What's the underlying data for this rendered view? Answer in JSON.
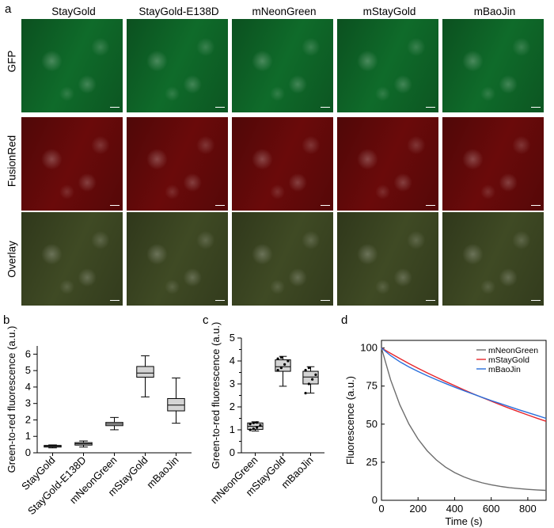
{
  "panel_labels": {
    "a": "a",
    "b": "b",
    "c": "c",
    "d": "d"
  },
  "panel_a": {
    "columns": [
      "StayGold",
      "StayGold-E138D",
      "mNeonGreen",
      "mStayGold",
      "mBaoJin"
    ],
    "rows": [
      {
        "label": "GFP",
        "color": "#0f6b2a"
      },
      {
        "label": "FusionRed",
        "color": "#6a0a0a"
      },
      {
        "label": "Overlay",
        "color": "#3f4a24"
      }
    ]
  },
  "chart_data": [
    {
      "panel": "b",
      "type": "box",
      "ylabel": "Green-to-red fluorescence (a.u.)",
      "categories": [
        "StayGold",
        "StayGold-E138D",
        "mNeonGreen",
        "mStayGold",
        "mBaoJin"
      ],
      "ylim": [
        0,
        6.5
      ],
      "yticks": [
        0,
        1,
        2,
        3,
        4,
        5,
        6
      ],
      "boxes": [
        {
          "min": 0.3,
          "q1": 0.35,
          "median": 0.4,
          "q3": 0.45,
          "max": 0.48
        },
        {
          "min": 0.35,
          "q1": 0.47,
          "median": 0.55,
          "q3": 0.62,
          "max": 0.72
        },
        {
          "min": 1.4,
          "q1": 1.65,
          "median": 1.75,
          "q3": 1.85,
          "max": 2.15
        },
        {
          "min": 3.4,
          "q1": 4.6,
          "median": 4.85,
          "q3": 5.25,
          "max": 5.9
        },
        {
          "min": 1.8,
          "q1": 2.55,
          "median": 2.9,
          "q3": 3.3,
          "max": 4.55
        }
      ]
    },
    {
      "panel": "c",
      "type": "box",
      "ylabel": "Green-to-red fluorescence (a.u.)",
      "categories": [
        "mNeonGreen",
        "mStayGold",
        "mBaoJin"
      ],
      "ylim": [
        0,
        5
      ],
      "yticks": [
        0,
        0.5,
        1,
        1.5,
        2,
        2.5,
        3,
        3.5,
        4,
        4.5,
        5
      ],
      "ytick_labels": [
        "0",
        "",
        "1",
        "",
        "2",
        "",
        "3",
        "",
        "4",
        "",
        "5"
      ],
      "boxes": [
        {
          "min": 0.95,
          "q1": 1.02,
          "median": 1.15,
          "q3": 1.3,
          "max": 1.35,
          "points": [
            1.0,
            1.05,
            1.1,
            1.2,
            1.25,
            1.3,
            1.32
          ]
        },
        {
          "min": 2.9,
          "q1": 3.55,
          "median": 3.75,
          "q3": 4.05,
          "max": 4.2,
          "points": [
            3.6,
            3.7,
            3.85,
            4.0,
            4.1,
            4.15
          ]
        },
        {
          "min": 2.6,
          "q1": 3.0,
          "median": 3.3,
          "q3": 3.55,
          "max": 3.75,
          "points": [
            2.6,
            3.0,
            3.2,
            3.4,
            3.6,
            3.7
          ]
        }
      ]
    },
    {
      "panel": "d",
      "type": "line",
      "xlabel": "Time (s)",
      "ylabel": "Fluorescence (a.u.)",
      "xlim": [
        0,
        900
      ],
      "ylim": [
        0,
        105
      ],
      "xticks": [
        0,
        200,
        400,
        600,
        800
      ],
      "yticks": [
        0,
        25,
        50,
        75,
        100
      ],
      "legend": "top-right",
      "x": [
        0,
        50,
        100,
        150,
        200,
        250,
        300,
        350,
        400,
        450,
        500,
        550,
        600,
        650,
        700,
        750,
        800,
        850,
        900
      ],
      "series": [
        {
          "name": "mNeonGreen",
          "color": "#6d6d6d",
          "values": [
            100,
            79.1,
            62.8,
            50.1,
            40.2,
            32.5,
            26.5,
            21.8,
            18.2,
            15.4,
            13.2,
            11.5,
            10.2,
            9.1,
            8.3,
            7.7,
            7.2,
            6.8,
            6.5
          ]
        },
        {
          "name": "mStayGold",
          "color": "#e8262b",
          "values": [
            100,
            96.5,
            93.1,
            89.8,
            86.7,
            83.7,
            80.8,
            78.0,
            75.3,
            72.6,
            70.0,
            67.5,
            65.1,
            62.7,
            60.4,
            58.2,
            56.0,
            53.9,
            51.9
          ]
        },
        {
          "name": "mBaoJin",
          "color": "#2a6fdb",
          "values": [
            100,
            95.0,
            91.0,
            87.6,
            84.6,
            81.8,
            79.2,
            76.7,
            74.3,
            72.0,
            69.8,
            67.6,
            65.5,
            63.5,
            61.5,
            59.5,
            57.6,
            55.7,
            53.8
          ]
        }
      ]
    }
  ]
}
